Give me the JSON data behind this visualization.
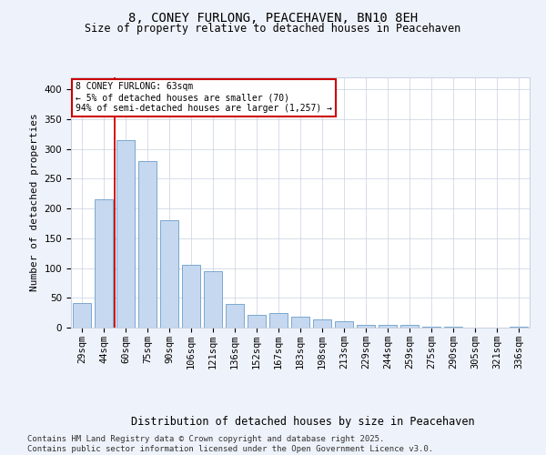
{
  "title1": "8, CONEY FURLONG, PEACEHAVEN, BN10 8EH",
  "title2": "Size of property relative to detached houses in Peacehaven",
  "xlabel": "Distribution of detached houses by size in Peacehaven",
  "ylabel": "Number of detached properties",
  "categories": [
    "29sqm",
    "44sqm",
    "60sqm",
    "75sqm",
    "90sqm",
    "106sqm",
    "121sqm",
    "136sqm",
    "152sqm",
    "167sqm",
    "183sqm",
    "198sqm",
    "213sqm",
    "229sqm",
    "244sqm",
    "259sqm",
    "275sqm",
    "290sqm",
    "305sqm",
    "321sqm",
    "336sqm"
  ],
  "values": [
    42,
    215,
    315,
    280,
    180,
    105,
    95,
    40,
    22,
    25,
    18,
    14,
    10,
    5,
    4,
    4,
    1,
    1,
    0,
    0,
    1
  ],
  "bar_color": "#c5d8f0",
  "bar_edge_color": "#6b9dc8",
  "vline_color": "#cc0000",
  "annotation_text": "8 CONEY FURLONG: 63sqm\n← 5% of detached houses are smaller (70)\n94% of semi-detached houses are larger (1,257) →",
  "annotation_box_color": "#ffffff",
  "annotation_box_edge": "#cc0000",
  "ylim": [
    0,
    420
  ],
  "yticks": [
    0,
    50,
    100,
    150,
    200,
    250,
    300,
    350,
    400
  ],
  "footnote": "Contains HM Land Registry data © Crown copyright and database right 2025.\nContains public sector information licensed under the Open Government Licence v3.0.",
  "bg_color": "#eef2fa",
  "plot_bg_color": "#ffffff",
  "grid_color": "#c8d0e0",
  "title1_fontsize": 10,
  "title2_fontsize": 8.5,
  "xlabel_fontsize": 8.5,
  "ylabel_fontsize": 8,
  "tick_fontsize": 7.5,
  "footnote_fontsize": 6.5
}
